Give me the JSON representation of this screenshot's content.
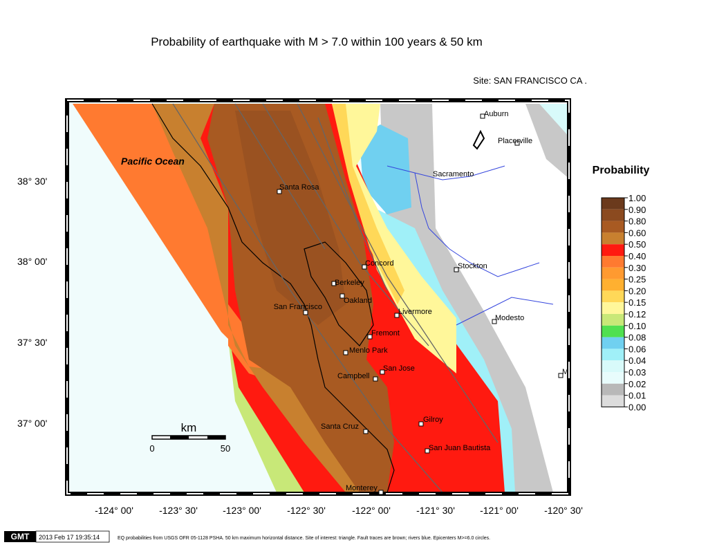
{
  "header": {
    "title": "Probability of earthquake with M > 7.0 within 100 years & 50 km",
    "site": "Site: SAN  FRANCISCO CA ."
  },
  "map": {
    "region_label": "Pacific Ocean",
    "cities": [
      "Auburn",
      "Placerville",
      "Sacramento",
      "Santa Rosa",
      "Concord",
      "Stockton",
      "Berkeley",
      "Oakland",
      "San Francisco",
      "Livermore",
      "Modesto",
      "Fremont",
      "Menlo Park",
      "San Jose",
      "Campbell",
      "Santa Cruz",
      "Gilroy",
      "San Juan Bautista",
      "Monterey",
      "M"
    ],
    "lat_labels": [
      "38° 30'",
      "38° 00'",
      "37° 30'",
      "37° 00'"
    ],
    "lon_labels": [
      "-124° 00'",
      "-123° 30'",
      "-123° 00'",
      "-122° 30'",
      "-122° 00'",
      "-121° 30'",
      "-121° 00'",
      "-120° 30'"
    ],
    "scale": {
      "unit": "km",
      "min": 0,
      "max": 50
    }
  },
  "legend": {
    "title": "Probability",
    "labels": [
      "1.00",
      "0.90",
      "0.80",
      "0.60",
      "0.50",
      "0.40",
      "0.30",
      "0.25",
      "0.20",
      "0.15",
      "0.12",
      "0.10",
      "0.08",
      "0.06",
      "0.04",
      "0.03",
      "0.02",
      "0.01",
      "0.00"
    ],
    "colors": [
      "#6b3a1c",
      "#8b4a1f",
      "#a85a22",
      "#c8802f",
      "#ff1a10",
      "#ff7a30",
      "#ff9a30",
      "#ffb030",
      "#ffd858",
      "#fff79a",
      "#c8e878",
      "#50e050",
      "#70d0f0",
      "#a0f0f8",
      "#d8fafa",
      "#e8fcfc",
      "#b8b8b8",
      "#dcdcdc",
      "#ffffff"
    ]
  },
  "footer": {
    "logo": "GMT",
    "timestamp": "2013 Feb 17 19:35:14",
    "caption": "EQ probabilities from USGS OFR 05-1128 PSHA. 50 km maximum horizontal distance. Site of interest: triangle. Fault traces are brown; rivers blue. Epicenters M>=6.0 circles."
  }
}
